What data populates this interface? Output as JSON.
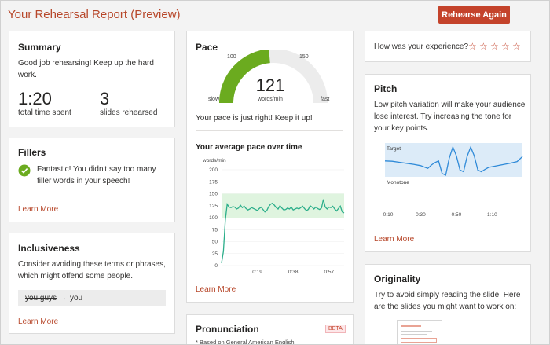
{
  "header": {
    "title": "Your Rehearsal Report (Preview)",
    "rehearse_button": "Rehearse Again"
  },
  "summary": {
    "title": "Summary",
    "message": "Good job rehearsing! Keep up the hard work.",
    "time_value": "1:20",
    "time_label": "total time spent",
    "slides_value": "3",
    "slides_label": "slides rehearsed"
  },
  "fillers": {
    "title": "Fillers",
    "message": "Fantastic! You didn't say too many filler words in your speech!",
    "learn_more": "Learn More"
  },
  "inclusiveness": {
    "title": "Inclusiveness",
    "message": "Consider avoiding these terms or phrases, which might offend some people.",
    "term": "you guys",
    "suggestion": "you",
    "learn_more": "Learn More"
  },
  "pace": {
    "title": "Pace",
    "gauge": {
      "value": "121",
      "unit": "words/min",
      "low_tick": "100",
      "high_tick": "150",
      "slow_label": "slow",
      "fast_label": "fast",
      "min": 50,
      "max": 200,
      "target_low": 100,
      "target_high": 150,
      "current": 121
    },
    "message": "Your pace is just right! Keep it up!",
    "chart_title": "Your average pace over time",
    "learn_more": "Learn More"
  },
  "pronunciation": {
    "title": "Pronunciation",
    "badge": "BETA",
    "note": "* Based on General American English"
  },
  "experience": {
    "question": "How was your experience?",
    "stars": 5
  },
  "pitch": {
    "title": "Pitch",
    "message": "Low pitch variation will make your audience lose interest. Try increasing the tone for your key points.",
    "target_label": "Target",
    "monotone_label": "Monotone",
    "learn_more": "Learn More",
    "x_ticks": [
      "0:10",
      "0:30",
      "0:50",
      "1:10"
    ]
  },
  "originality": {
    "title": "Originality",
    "message": "Try to avoid simply reading the slide. Here are the slides you might want to work on:"
  },
  "colors": {
    "accent": "#c4432b",
    "gauge_fill": "#6bab1f",
    "line": "#2bae8a",
    "target_band": "#dff4df",
    "pitch_band": "#dcebf8",
    "pitch_line": "#2f8ad8"
  },
  "chart_data": [
    {
      "type": "line",
      "title": "Your average pace over time",
      "ylabel": "words/min",
      "xlabel": "",
      "ylim": [
        0,
        200
      ],
      "yticks": [
        0,
        25,
        50,
        75,
        100,
        125,
        150,
        175,
        200
      ],
      "x_tick_labels": [
        "0:19",
        "0:38",
        "0:57"
      ],
      "x_tick_seconds": [
        19,
        38,
        57
      ],
      "target_band": [
        100,
        150
      ],
      "series": [
        {
          "name": "pace",
          "x": [
            0,
            1,
            2,
            3,
            4,
            5,
            6,
            7,
            8,
            9,
            10,
            11,
            12,
            13,
            14,
            15,
            16,
            17,
            18,
            19,
            20,
            21,
            22,
            23,
            24,
            25,
            26,
            27,
            28,
            29,
            30,
            31,
            32,
            33,
            34,
            35,
            36,
            37,
            38,
            39,
            40,
            41,
            42,
            43,
            44,
            45,
            46,
            47,
            48,
            49,
            50,
            51,
            52,
            53,
            54,
            55,
            56,
            57,
            58,
            59,
            60,
            61,
            62,
            63,
            64,
            65
          ],
          "values": [
            5,
            30,
            95,
            128,
            122,
            121,
            123,
            122,
            118,
            120,
            126,
            121,
            124,
            119,
            116,
            118,
            121,
            119,
            117,
            115,
            119,
            122,
            117,
            112,
            115,
            123,
            128,
            130,
            126,
            121,
            118,
            125,
            120,
            116,
            117,
            120,
            118,
            122,
            116,
            118,
            120,
            118,
            121,
            124,
            119,
            115,
            117,
            125,
            122,
            118,
            122,
            119,
            117,
            120,
            138,
            122,
            118,
            122,
            121,
            124,
            118,
            114,
            119,
            124,
            112,
            110
          ]
        }
      ]
    },
    {
      "type": "line",
      "title": "Pitch",
      "x_tick_labels": [
        "0:10",
        "0:30",
        "0:50",
        "1:10"
      ],
      "x_tick_seconds": [
        10,
        30,
        50,
        70
      ],
      "band_labels": [
        "Target",
        "Monotone"
      ],
      "series": [
        {
          "name": "pitch",
          "x": [
            0,
            4,
            8,
            12,
            16,
            20,
            24,
            26,
            28,
            30,
            32,
            34,
            36,
            38,
            40,
            42,
            44,
            46,
            48,
            50,
            52,
            54,
            56,
            58,
            60,
            62,
            66,
            70,
            74,
            77
          ],
          "values": [
            0.47,
            0.46,
            0.43,
            0.4,
            0.37,
            0.33,
            0.25,
            0.35,
            0.42,
            0.47,
            0.1,
            0.05,
            0.55,
            0.88,
            0.62,
            0.2,
            0.15,
            0.6,
            0.88,
            0.62,
            0.2,
            0.15,
            0.22,
            0.28,
            0.3,
            0.32,
            0.36,
            0.4,
            0.45,
            0.6
          ]
        }
      ]
    }
  ]
}
